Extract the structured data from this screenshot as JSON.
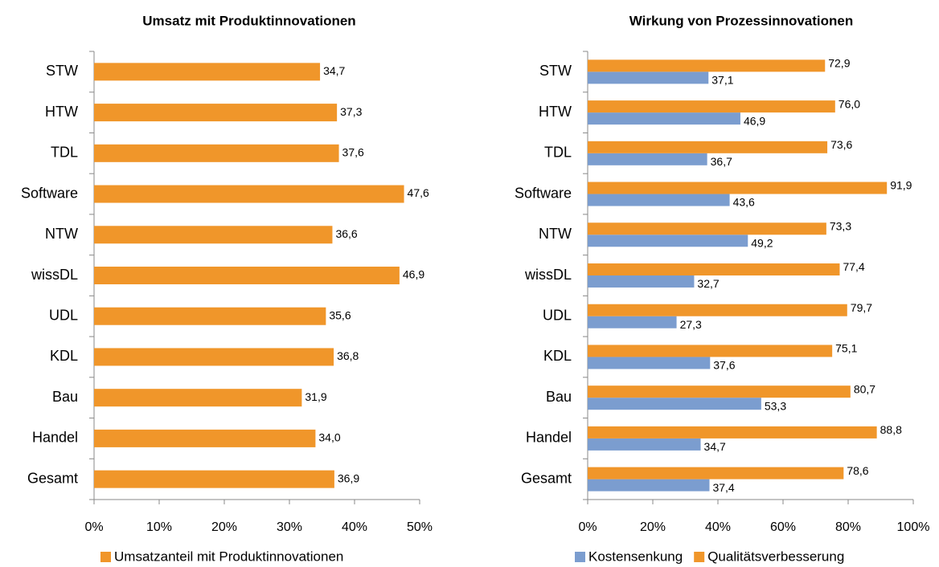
{
  "chart_data": [
    {
      "type": "bar",
      "title": "Umsatz mit Produktinnovationen",
      "categories": [
        "STW",
        "HTW",
        "TDL",
        "Software",
        "NTW",
        "wissDL",
        "UDL",
        "KDL",
        "Bau",
        "Handel",
        "Gesamt"
      ],
      "series": [
        {
          "name": "Umsatzanteil mit Produktinnovationen",
          "color": "#f0962a",
          "values": [
            34.7,
            37.3,
            37.6,
            47.6,
            36.6,
            46.9,
            35.6,
            36.8,
            31.9,
            34.0,
            36.9
          ],
          "value_labels": [
            "34,7",
            "37,3",
            "37,6",
            "47,6",
            "36,6",
            "46,9",
            "35,6",
            "36,8",
            "31,9",
            "34,0",
            "36,9"
          ]
        }
      ],
      "xlim": [
        0,
        50
      ],
      "xticks": [
        {
          "value": 0,
          "label": "0%"
        },
        {
          "value": 10,
          "label": "10%"
        },
        {
          "value": 20,
          "label": "20%"
        },
        {
          "value": 30,
          "label": "30%"
        },
        {
          "value": 40,
          "label": "40%"
        },
        {
          "value": 50,
          "label": "50%"
        }
      ],
      "legend": "bottom"
    },
    {
      "type": "bar",
      "title": "Wirkung von Prozessinnovationen",
      "categories": [
        "STW",
        "HTW",
        "TDL",
        "Software",
        "NTW",
        "wissDL",
        "UDL",
        "KDL",
        "Bau",
        "Handel",
        "Gesamt"
      ],
      "series": [
        {
          "name": "Kostensenkung",
          "color": "#7b9dcf",
          "values": [
            37.1,
            46.9,
            36.7,
            43.6,
            49.2,
            32.7,
            27.3,
            37.6,
            53.3,
            34.7,
            37.4
          ],
          "value_labels": [
            "37,1",
            "46,9",
            "36,7",
            "43,6",
            "49,2",
            "32,7",
            "27,3",
            "37,6",
            "53,3",
            "34,7",
            "37,4"
          ]
        },
        {
          "name": "Qualitätsverbesserung",
          "color": "#f0962a",
          "values": [
            72.9,
            76.0,
            73.6,
            91.9,
            73.3,
            77.4,
            79.7,
            75.1,
            80.7,
            88.8,
            78.6
          ],
          "value_labels": [
            "72,9",
            "76,0",
            "73,6",
            "91,9",
            "73,3",
            "77,4",
            "79,7",
            "75,1",
            "80,7",
            "88,8",
            "78,6"
          ]
        }
      ],
      "xlim": [
        0,
        100
      ],
      "xticks": [
        {
          "value": 0,
          "label": "0%"
        },
        {
          "value": 20,
          "label": "20%"
        },
        {
          "value": 40,
          "label": "40%"
        },
        {
          "value": 60,
          "label": "60%"
        },
        {
          "value": 80,
          "label": "80%"
        },
        {
          "value": 100,
          "label": "100%"
        }
      ],
      "legend": "bottom"
    }
  ]
}
